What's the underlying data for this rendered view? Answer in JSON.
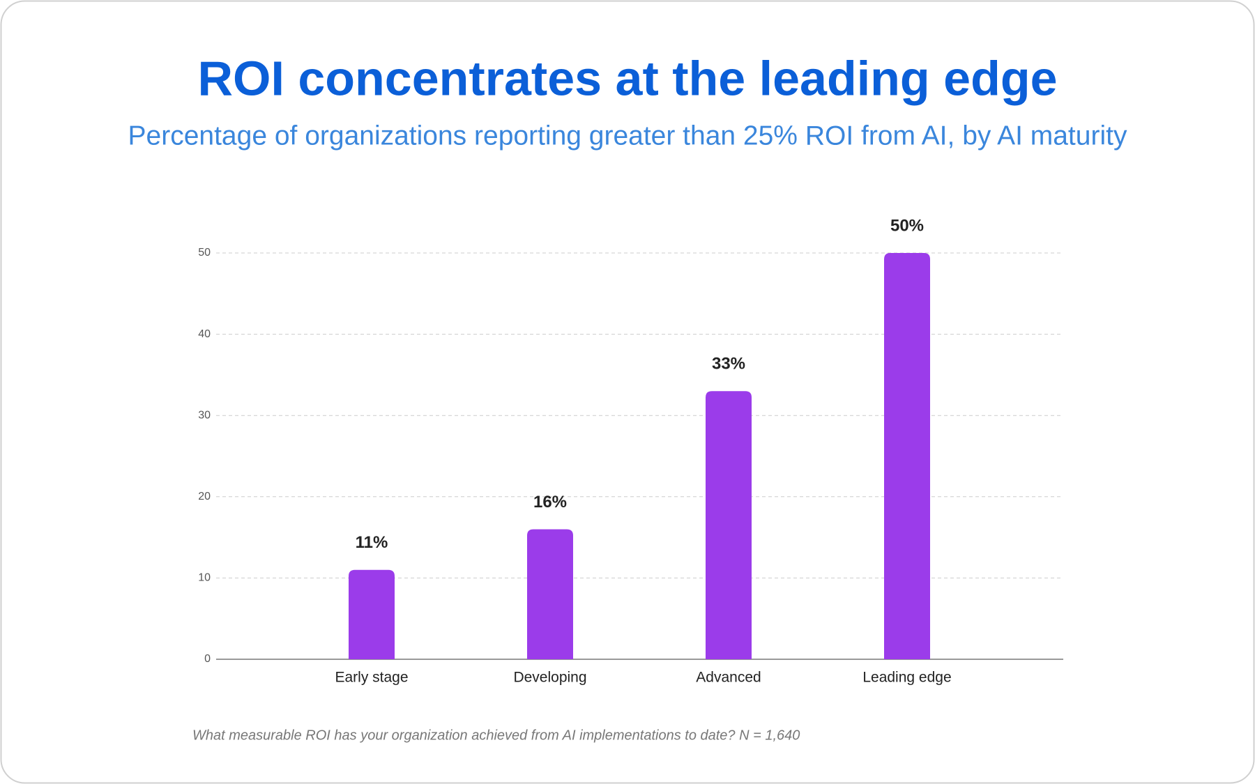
{
  "chart_data": {
    "type": "bar",
    "title": "ROI concentrates at the leading edge",
    "subtitle": "Percentage of organizations reporting greater than 25% ROI from AI, by AI maturity",
    "categories": [
      "Early stage",
      "Developing",
      "Advanced",
      "Leading edge"
    ],
    "values": [
      11,
      16,
      33,
      50
    ],
    "value_labels": [
      "11%",
      "16%",
      "33%",
      "50%"
    ],
    "color": "#9b3cea",
    "ylim": [
      0,
      50
    ],
    "yticks": [
      0,
      10,
      20,
      30,
      40,
      50
    ],
    "grid": true,
    "footnote": "What measurable ROI has your organization achieved from AI implementations to date? N = 1,640"
  }
}
